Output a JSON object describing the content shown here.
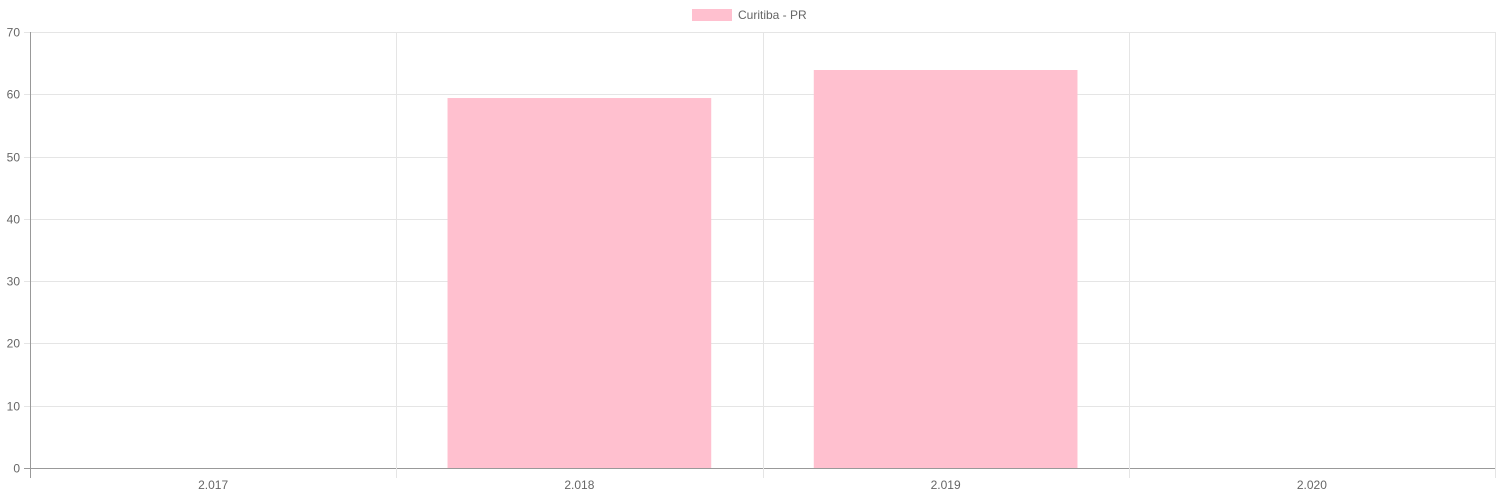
{
  "chart_data": {
    "type": "bar",
    "categories": [
      "2.017",
      "2.018",
      "2.019",
      "2.020"
    ],
    "series": [
      {
        "name": "Curitiba - PR",
        "values": [
          0,
          59.4,
          63.9,
          0
        ],
        "color": "#ffc0cf"
      }
    ],
    "ylim": [
      0,
      70
    ],
    "yticks": [
      0,
      10,
      20,
      30,
      40,
      50,
      60,
      70
    ],
    "grid": true,
    "legend_position": "top-center",
    "title": "",
    "xlabel": "",
    "ylabel": ""
  }
}
